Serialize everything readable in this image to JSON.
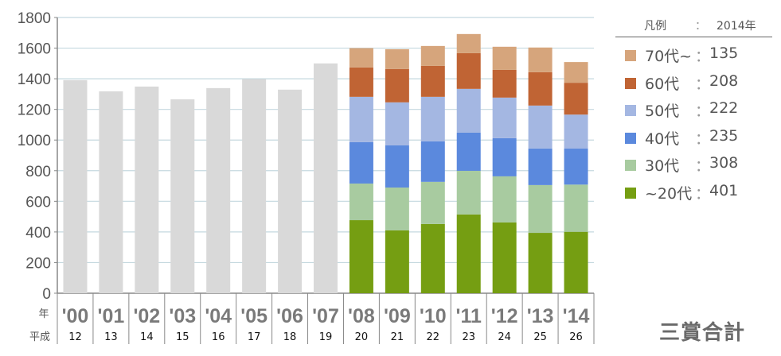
{
  "chart_data": {
    "type": "bar",
    "stacked": true,
    "title": "三賞合計",
    "x_row_label_year": "年",
    "x_row_label_era": "平成",
    "categories": [
      "'00",
      "'01",
      "'02",
      "'03",
      "'04",
      "'05",
      "'06",
      "'07",
      "'08",
      "'09",
      "'10",
      "'11",
      "'12",
      "'13",
      "'14"
    ],
    "heisei": [
      "12",
      "13",
      "14",
      "15",
      "16",
      "17",
      "18",
      "19",
      "20",
      "21",
      "22",
      "23",
      "24",
      "25",
      "26"
    ],
    "yticks": [
      "0",
      "200",
      "400",
      "600",
      "800",
      "1000",
      "1200",
      "1400",
      "1600",
      "1800"
    ],
    "ylim": [
      0,
      1800
    ],
    "grid": true,
    "totals_only": {
      "name": "合計",
      "color": "#d9d9d9",
      "values": [
        1391,
        1318,
        1349,
        1266,
        1339,
        1398,
        1329,
        1500,
        null,
        null,
        null,
        null,
        null,
        null,
        null
      ]
    },
    "series": [
      {
        "name": "~20代",
        "color": "#759e12",
        "values": [
          null,
          null,
          null,
          null,
          null,
          null,
          null,
          null,
          477,
          410,
          452,
          514,
          462,
          394,
          401
        ]
      },
      {
        "name": "30代",
        "color": "#a8cba0",
        "values": [
          null,
          null,
          null,
          null,
          null,
          null,
          null,
          null,
          239,
          280,
          275,
          285,
          301,
          312,
          308
        ]
      },
      {
        "name": "40代",
        "color": "#5b89dd",
        "values": [
          null,
          null,
          null,
          null,
          null,
          null,
          null,
          null,
          270,
          275,
          264,
          249,
          249,
          239,
          235
        ]
      },
      {
        "name": "50代",
        "color": "#a4b7e2",
        "values": [
          null,
          null,
          null,
          null,
          null,
          null,
          null,
          null,
          296,
          281,
          291,
          286,
          265,
          280,
          222
        ]
      },
      {
        "name": "60代",
        "color": "#c06434",
        "values": [
          null,
          null,
          null,
          null,
          null,
          null,
          null,
          null,
          192,
          218,
          202,
          233,
          181,
          218,
          208
        ]
      },
      {
        "name": "70代~",
        "color": "#d6a57c",
        "values": [
          null,
          null,
          null,
          null,
          null,
          null,
          null,
          null,
          126,
          129,
          130,
          125,
          151,
          161,
          135
        ]
      }
    ],
    "legend": {
      "placement": "right",
      "title": "凡例",
      "colon": "：",
      "year": "2014年",
      "items": [
        {
          "name": "70代~",
          "value": "135",
          "color": "#d6a57c"
        },
        {
          "name": "60代",
          "value": "208",
          "color": "#c06434"
        },
        {
          "name": "50代",
          "value": "222",
          "color": "#a4b7e2"
        },
        {
          "name": "40代",
          "value": "235",
          "color": "#5b89dd"
        },
        {
          "name": "30代",
          "value": "308",
          "color": "#a8cba0"
        },
        {
          "name": "~20代",
          "value": "401",
          "color": "#759e12"
        }
      ]
    }
  }
}
